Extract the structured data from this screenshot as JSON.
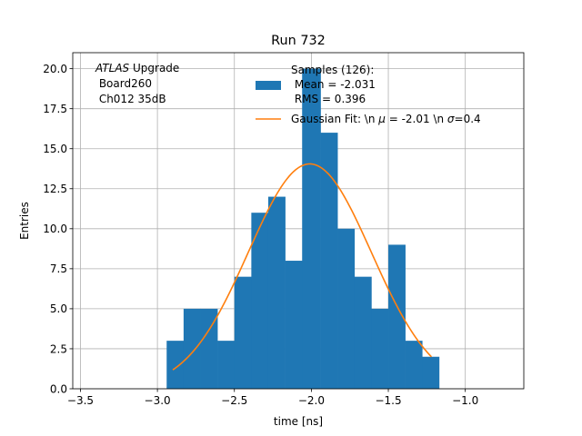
{
  "chart_data": {
    "type": "bar",
    "title": "Run 732",
    "xlabel": "time [ns]",
    "ylabel": "Entries",
    "xlim": [
      -3.55,
      -0.62
    ],
    "ylim": [
      0,
      21
    ],
    "grid": true,
    "xticks": [
      {
        "value": -3.5,
        "label": "−3.5"
      },
      {
        "value": -3.0,
        "label": "−3.0"
      },
      {
        "value": -2.5,
        "label": "−2.5"
      },
      {
        "value": -2.0,
        "label": "−2.0"
      },
      {
        "value": -1.5,
        "label": "−1.5"
      },
      {
        "value": -1.0,
        "label": "−1.0"
      }
    ],
    "yticks": [
      {
        "value": 0,
        "label": "0.0"
      },
      {
        "value": 2.5,
        "label": "2.5"
      },
      {
        "value": 5,
        "label": "5.0"
      },
      {
        "value": 7.5,
        "label": "7.5"
      },
      {
        "value": 10,
        "label": "10.0"
      },
      {
        "value": 12.5,
        "label": "12.5"
      },
      {
        "value": 15,
        "label": "15.0"
      },
      {
        "value": 17.5,
        "label": "17.5"
      },
      {
        "value": 20,
        "label": "20.0"
      }
    ],
    "histogram": {
      "name": "Samples (126):",
      "color": "#1f77b4",
      "bin_edges": [
        -2.94,
        -2.83,
        -2.72,
        -2.61,
        -2.5,
        -2.39,
        -2.28,
        -2.17,
        -2.06,
        -1.94,
        -1.83,
        -1.72,
        -1.61,
        -1.5,
        -1.39,
        -1.28,
        -1.17
      ],
      "counts": [
        3,
        5,
        5,
        3,
        7,
        11,
        12,
        8,
        20,
        16,
        10,
        7,
        5,
        9,
        3,
        2
      ]
    },
    "fit": {
      "name": "Gaussian Fit: \\n μ = -2.01 \\n σ=0.4",
      "color": "#ff7f0e",
      "mu": -2.01,
      "sigma": 0.4,
      "amplitude": 14.05,
      "x_range": [
        -2.9,
        -1.22
      ]
    },
    "legend": {
      "placement": "upper-right",
      "hist_lines": [
        "Samples (126):",
        " Mean = -2.031",
        " RMS = 0.396"
      ],
      "fit_prefix": "Gaussian Fit: \\n ",
      "fit_mu_symbol": "μ",
      "fit_mid": " = -2.01 \\n ",
      "fit_sigma_symbol": "σ",
      "fit_suffix": "=0.4"
    },
    "annotation": {
      "italic": "ATLAS",
      "rest": " Upgrade",
      "line2": " Board260",
      "line3": " Ch012 35dB"
    }
  }
}
